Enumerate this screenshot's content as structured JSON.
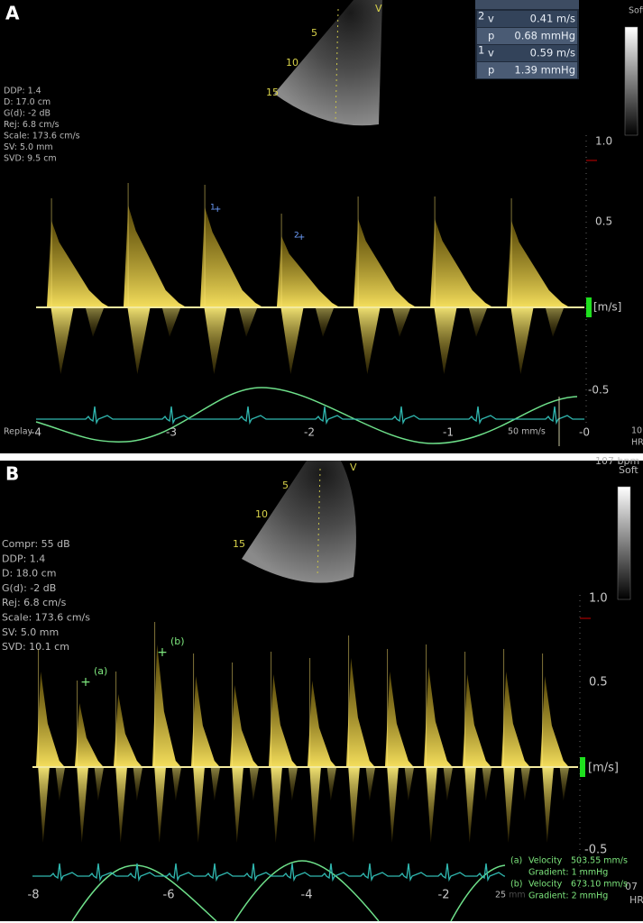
{
  "panels": [
    {
      "label": "A",
      "view": "V",
      "depths": [
        "5",
        "10",
        "15"
      ],
      "settings": [
        "DDP: 1.4",
        "D: 17.0 cm",
        "G(d): -2 dB",
        "Rej: 6.8 cm/s",
        "Scale: 173.6 cm/s",
        "SV: 5.0 mm",
        "SVD: 9.5 cm"
      ],
      "measurements": [
        {
          "index": "2",
          "rows": [
            {
              "symbol": "v",
              "reading": "0.41 m/s"
            },
            {
              "symbol": "p",
              "reading": "0.68 mmHg"
            }
          ]
        },
        {
          "index": "1",
          "rows": [
            {
              "symbol": "v",
              "reading": "0.59 m/s"
            },
            {
              "symbol": "p",
              "reading": "1.39 mmHg"
            }
          ]
        }
      ],
      "corner_top": "Soft",
      "corner_bottom": [
        "10",
        "HR"
      ],
      "scale_labels": [
        "1.0",
        "0.5",
        "[m/s]",
        "-0.5"
      ],
      "time_labels": [
        "-4",
        "-3",
        "-2",
        "-1",
        "-0"
      ],
      "mode": "Replay",
      "sweep": "50 mm/s",
      "markers": [
        "1",
        "2"
      ]
    },
    {
      "label": "B",
      "view": "V",
      "depths": [
        "5",
        "10",
        "15"
      ],
      "settings": [
        "Compr: 55 dB",
        "DDP: 1.4",
        "D: 18.0 cm",
        "G(d): -2 dB",
        "Rej: 6.8 cm/s",
        "Scale: 173.6 cm/s",
        "SV: 5.0 mm",
        "SVD: 10.1 cm"
      ],
      "corner_top": [
        "107 bpm",
        "Soft"
      ],
      "corner_bottom": [
        "07",
        "HR"
      ],
      "scale_labels": [
        "1.0",
        "0.5",
        "[m/s]",
        "-0.5"
      ],
      "time_labels": [
        "-8",
        "-6",
        "-4",
        "-2"
      ],
      "sweep": "25 mm",
      "markers": [
        "(a)",
        "(b)"
      ],
      "results": [
        {
          "marker": "(a)",
          "velocity_label": "Velocity",
          "velocity": "503.55 mm/s",
          "gradient": "Gradient:  1 mmHg"
        },
        {
          "marker": "(b)",
          "velocity_label": "Velocity",
          "velocity": "673.10 mm/s",
          "gradient": "Gradient:  2 mmHg"
        }
      ]
    }
  ]
}
